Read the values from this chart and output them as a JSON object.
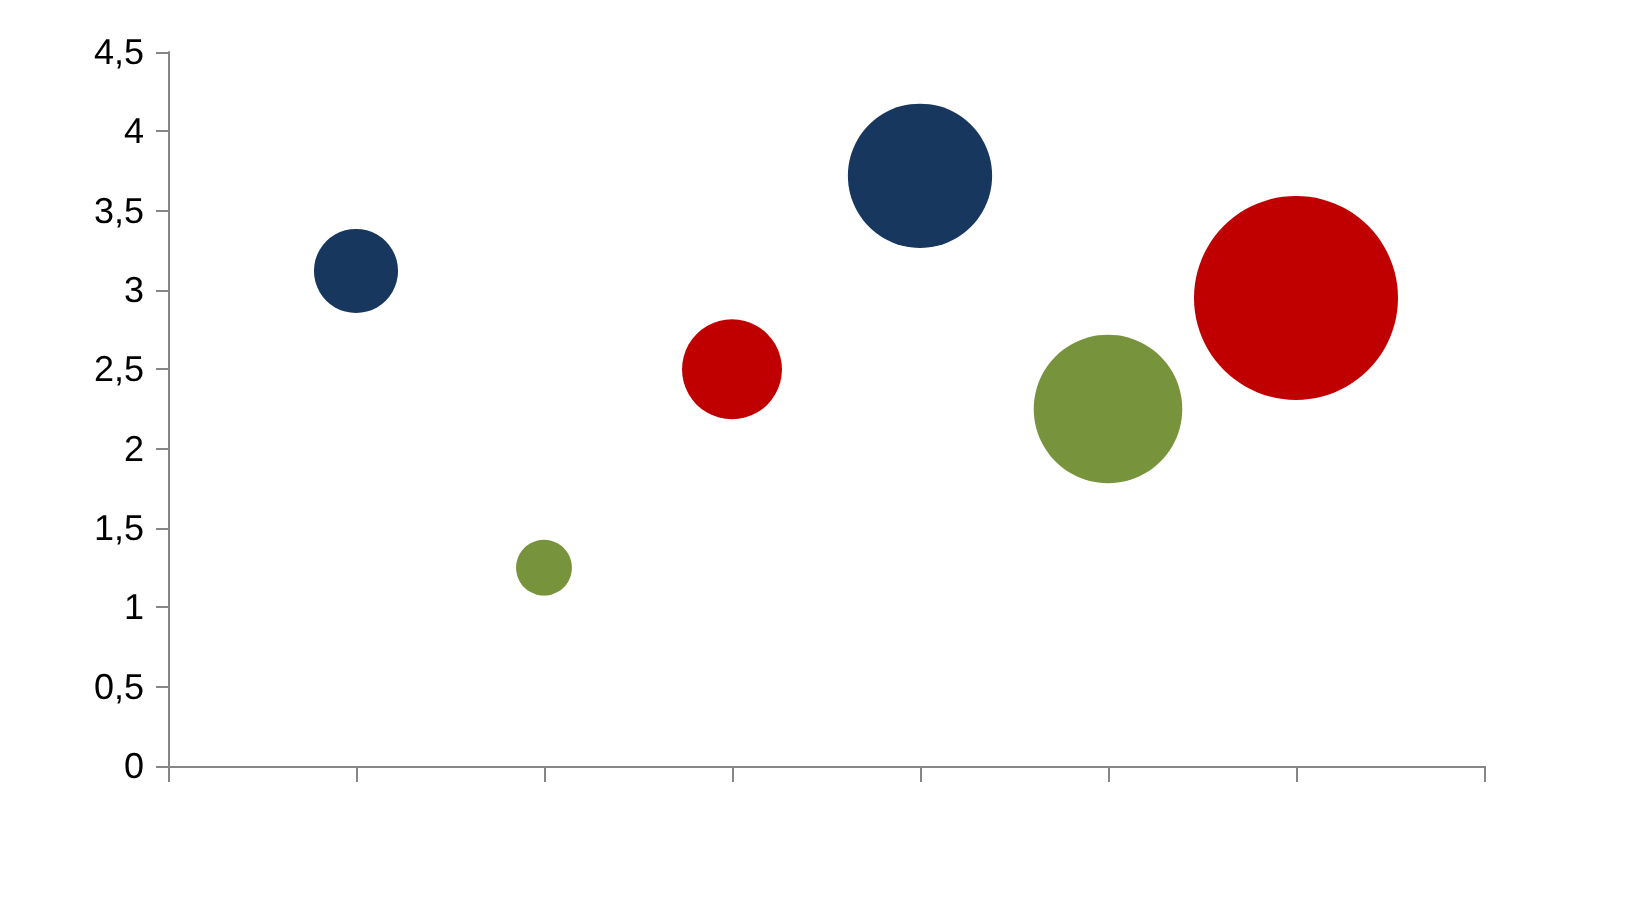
{
  "chart_data": {
    "type": "bubble",
    "categories": [
      null,
      null,
      null,
      null,
      null,
      null,
      null,
      null
    ],
    "values": [
      null,
      3.12,
      1.25,
      2.5,
      3.72,
      2.25,
      2.95,
      null
    ],
    "sizes": [
      null,
      0.17,
      0.075,
      0.24,
      0.5,
      0.53,
      1,
      null
    ],
    "colors": [
      null,
      "#17375e",
      "#77933c",
      "#c00000",
      "#17375e",
      "#77933c",
      "#c00000",
      null
    ],
    "ylim": [
      0,
      4.5
    ],
    "yticks": [
      0,
      {
        "value": 0.5,
        "label": "0,5"
      },
      1,
      {
        "value": 1.5,
        "label": "1,5"
      },
      2,
      {
        "value": 2.5,
        "label": "2,5"
      },
      3,
      {
        "value": 3.5,
        "label": "3,5"
      },
      4,
      {
        "value": 4.5,
        "label": "4,5"
      }
    ],
    "grid": false,
    "tick_labels": "y"
  }
}
